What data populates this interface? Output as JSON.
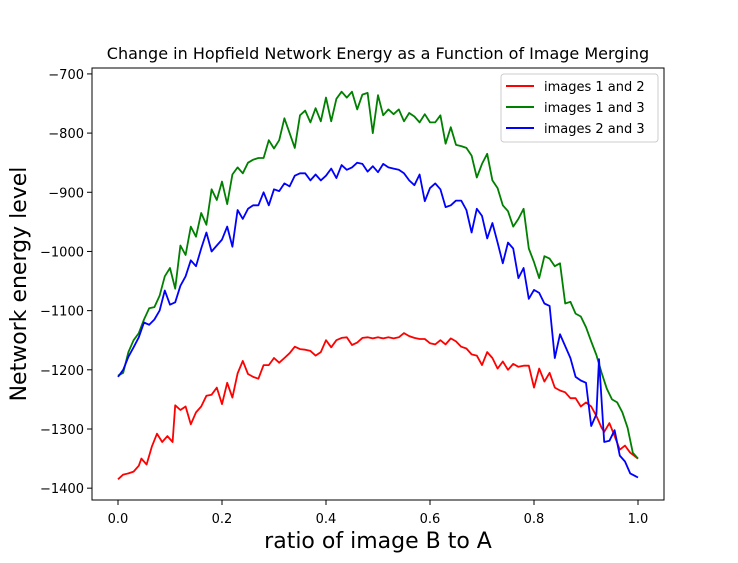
{
  "chart_data": {
    "type": "line",
    "title": "Change in Hopfield Network Energy as a Function of Image Merging",
    "xlabel": "ratio of image B to A",
    "ylabel": "Network energy level",
    "xlim": [
      -0.05,
      1.05
    ],
    "ylim": [
      -1420,
      -690
    ],
    "xticks": [
      0.0,
      0.2,
      0.4,
      0.6,
      0.8,
      1.0
    ],
    "xtick_labels": [
      "0.0",
      "0.2",
      "0.4",
      "0.6",
      "0.8",
      "1.0"
    ],
    "yticks": [
      -1400,
      -1300,
      -1200,
      -1100,
      -1000,
      -900,
      -800,
      -700
    ],
    "ytick_labels": [
      "−1400",
      "−1300",
      "−1200",
      "−1100",
      "−1000",
      "−900",
      "−800",
      "−700"
    ],
    "grid": false,
    "legend_position": "top-right",
    "series": [
      {
        "name": "images 1 and 2",
        "color": "#ff0000",
        "points": [
          [
            0.0,
            -1385
          ],
          [
            0.01,
            -1377
          ],
          [
            0.02,
            -1375
          ],
          [
            0.03,
            -1372
          ],
          [
            0.04,
            -1362
          ],
          [
            0.045,
            -1350
          ],
          [
            0.055,
            -1360
          ],
          [
            0.065,
            -1330
          ],
          [
            0.075,
            -1308
          ],
          [
            0.085,
            -1322
          ],
          [
            0.095,
            -1312
          ],
          [
            0.105,
            -1322
          ],
          [
            0.11,
            -1260
          ],
          [
            0.12,
            -1268
          ],
          [
            0.13,
            -1262
          ],
          [
            0.14,
            -1292
          ],
          [
            0.15,
            -1272
          ],
          [
            0.16,
            -1262
          ],
          [
            0.17,
            -1244
          ],
          [
            0.18,
            -1242
          ],
          [
            0.19,
            -1230
          ],
          [
            0.2,
            -1258
          ],
          [
            0.21,
            -1222
          ],
          [
            0.22,
            -1247
          ],
          [
            0.23,
            -1206
          ],
          [
            0.24,
            -1185
          ],
          [
            0.25,
            -1207
          ],
          [
            0.26,
            -1212
          ],
          [
            0.27,
            -1215
          ],
          [
            0.28,
            -1192
          ],
          [
            0.29,
            -1192
          ],
          [
            0.3,
            -1180
          ],
          [
            0.31,
            -1188
          ],
          [
            0.32,
            -1180
          ],
          [
            0.33,
            -1172
          ],
          [
            0.34,
            -1161
          ],
          [
            0.35,
            -1165
          ],
          [
            0.36,
            -1166
          ],
          [
            0.37,
            -1168
          ],
          [
            0.38,
            -1176
          ],
          [
            0.39,
            -1170
          ],
          [
            0.4,
            -1150
          ],
          [
            0.41,
            -1162
          ],
          [
            0.42,
            -1150
          ],
          [
            0.43,
            -1146
          ],
          [
            0.44,
            -1145
          ],
          [
            0.45,
            -1158
          ],
          [
            0.46,
            -1154
          ],
          [
            0.47,
            -1146
          ],
          [
            0.48,
            -1145
          ],
          [
            0.49,
            -1147
          ],
          [
            0.5,
            -1145
          ],
          [
            0.51,
            -1147
          ],
          [
            0.52,
            -1145
          ],
          [
            0.53,
            -1147
          ],
          [
            0.54,
            -1145
          ],
          [
            0.55,
            -1138
          ],
          [
            0.56,
            -1143
          ],
          [
            0.57,
            -1146
          ],
          [
            0.58,
            -1148
          ],
          [
            0.59,
            -1148
          ],
          [
            0.6,
            -1155
          ],
          [
            0.61,
            -1157
          ],
          [
            0.62,
            -1150
          ],
          [
            0.63,
            -1157
          ],
          [
            0.64,
            -1147
          ],
          [
            0.65,
            -1152
          ],
          [
            0.66,
            -1161
          ],
          [
            0.67,
            -1164
          ],
          [
            0.68,
            -1174
          ],
          [
            0.69,
            -1176
          ],
          [
            0.7,
            -1192
          ],
          [
            0.71,
            -1170
          ],
          [
            0.72,
            -1180
          ],
          [
            0.73,
            -1198
          ],
          [
            0.74,
            -1186
          ],
          [
            0.75,
            -1200
          ],
          [
            0.76,
            -1190
          ],
          [
            0.77,
            -1195
          ],
          [
            0.78,
            -1193
          ],
          [
            0.79,
            -1193
          ],
          [
            0.8,
            -1230
          ],
          [
            0.81,
            -1198
          ],
          [
            0.82,
            -1220
          ],
          [
            0.83,
            -1205
          ],
          [
            0.84,
            -1230
          ],
          [
            0.85,
            -1235
          ],
          [
            0.86,
            -1238
          ],
          [
            0.87,
            -1248
          ],
          [
            0.88,
            -1248
          ],
          [
            0.89,
            -1262
          ],
          [
            0.9,
            -1255
          ],
          [
            0.91,
            -1262
          ],
          [
            0.92,
            -1278
          ],
          [
            0.93,
            -1298
          ],
          [
            0.935,
            -1305
          ],
          [
            0.945,
            -1290
          ],
          [
            0.955,
            -1312
          ],
          [
            0.965,
            -1335
          ],
          [
            0.975,
            -1328
          ],
          [
            0.985,
            -1340
          ],
          [
            1.0,
            -1350
          ]
        ]
      },
      {
        "name": "images 1 and 3",
        "color": "#008000",
        "points": [
          [
            0.0,
            -1210
          ],
          [
            0.01,
            -1205
          ],
          [
            0.02,
            -1170
          ],
          [
            0.03,
            -1150
          ],
          [
            0.04,
            -1138
          ],
          [
            0.05,
            -1115
          ],
          [
            0.06,
            -1096
          ],
          [
            0.07,
            -1094
          ],
          [
            0.08,
            -1075
          ],
          [
            0.09,
            -1042
          ],
          [
            0.1,
            -1028
          ],
          [
            0.11,
            -1063
          ],
          [
            0.12,
            -990
          ],
          [
            0.13,
            -1006
          ],
          [
            0.14,
            -958
          ],
          [
            0.15,
            -975
          ],
          [
            0.16,
            -935
          ],
          [
            0.17,
            -955
          ],
          [
            0.18,
            -895
          ],
          [
            0.19,
            -913
          ],
          [
            0.2,
            -882
          ],
          [
            0.21,
            -920
          ],
          [
            0.22,
            -870
          ],
          [
            0.23,
            -858
          ],
          [
            0.24,
            -868
          ],
          [
            0.25,
            -850
          ],
          [
            0.26,
            -845
          ],
          [
            0.27,
            -842
          ],
          [
            0.28,
            -842
          ],
          [
            0.29,
            -812
          ],
          [
            0.3,
            -826
          ],
          [
            0.31,
            -812
          ],
          [
            0.32,
            -775
          ],
          [
            0.33,
            -800
          ],
          [
            0.34,
            -825
          ],
          [
            0.35,
            -770
          ],
          [
            0.36,
            -762
          ],
          [
            0.37,
            -782
          ],
          [
            0.38,
            -758
          ],
          [
            0.39,
            -780
          ],
          [
            0.4,
            -740
          ],
          [
            0.41,
            -780
          ],
          [
            0.42,
            -742
          ],
          [
            0.43,
            -730
          ],
          [
            0.44,
            -740
          ],
          [
            0.45,
            -730
          ],
          [
            0.46,
            -760
          ],
          [
            0.47,
            -735
          ],
          [
            0.48,
            -732
          ],
          [
            0.49,
            -800
          ],
          [
            0.5,
            -736
          ],
          [
            0.51,
            -770
          ],
          [
            0.52,
            -760
          ],
          [
            0.53,
            -768
          ],
          [
            0.54,
            -760
          ],
          [
            0.55,
            -780
          ],
          [
            0.56,
            -766
          ],
          [
            0.57,
            -772
          ],
          [
            0.58,
            -782
          ],
          [
            0.59,
            -768
          ],
          [
            0.6,
            -782
          ],
          [
            0.61,
            -782
          ],
          [
            0.62,
            -770
          ],
          [
            0.63,
            -818
          ],
          [
            0.64,
            -790
          ],
          [
            0.65,
            -820
          ],
          [
            0.66,
            -822
          ],
          [
            0.67,
            -825
          ],
          [
            0.68,
            -838
          ],
          [
            0.69,
            -875
          ],
          [
            0.7,
            -852
          ],
          [
            0.71,
            -835
          ],
          [
            0.72,
            -880
          ],
          [
            0.73,
            -893
          ],
          [
            0.74,
            -922
          ],
          [
            0.75,
            -932
          ],
          [
            0.76,
            -958
          ],
          [
            0.77,
            -945
          ],
          [
            0.78,
            -928
          ],
          [
            0.79,
            -995
          ],
          [
            0.8,
            -1018
          ],
          [
            0.81,
            -1045
          ],
          [
            0.82,
            -1008
          ],
          [
            0.83,
            -1012
          ],
          [
            0.84,
            -1025
          ],
          [
            0.85,
            -1020
          ],
          [
            0.86,
            -1088
          ],
          [
            0.87,
            -1085
          ],
          [
            0.88,
            -1105
          ],
          [
            0.89,
            -1110
          ],
          [
            0.9,
            -1128
          ],
          [
            0.91,
            -1152
          ],
          [
            0.92,
            -1175
          ],
          [
            0.93,
            -1205
          ],
          [
            0.94,
            -1232
          ],
          [
            0.95,
            -1250
          ],
          [
            0.96,
            -1255
          ],
          [
            0.97,
            -1272
          ],
          [
            0.98,
            -1298
          ],
          [
            0.99,
            -1340
          ],
          [
            1.0,
            -1350
          ]
        ]
      },
      {
        "name": "images 2 and 3",
        "color": "#0000ff",
        "points": [
          [
            0.0,
            -1212
          ],
          [
            0.01,
            -1200
          ],
          [
            0.02,
            -1178
          ],
          [
            0.03,
            -1162
          ],
          [
            0.04,
            -1145
          ],
          [
            0.05,
            -1120
          ],
          [
            0.06,
            -1124
          ],
          [
            0.07,
            -1115
          ],
          [
            0.08,
            -1100
          ],
          [
            0.09,
            -1066
          ],
          [
            0.1,
            -1090
          ],
          [
            0.11,
            -1086
          ],
          [
            0.12,
            -1058
          ],
          [
            0.13,
            -1042
          ],
          [
            0.14,
            -1015
          ],
          [
            0.15,
            -1025
          ],
          [
            0.16,
            -995
          ],
          [
            0.17,
            -968
          ],
          [
            0.18,
            -1000
          ],
          [
            0.19,
            -990
          ],
          [
            0.2,
            -980
          ],
          [
            0.21,
            -958
          ],
          [
            0.22,
            -992
          ],
          [
            0.23,
            -930
          ],
          [
            0.24,
            -945
          ],
          [
            0.25,
            -928
          ],
          [
            0.26,
            -922
          ],
          [
            0.27,
            -922
          ],
          [
            0.28,
            -900
          ],
          [
            0.29,
            -922
          ],
          [
            0.3,
            -895
          ],
          [
            0.31,
            -898
          ],
          [
            0.32,
            -885
          ],
          [
            0.33,
            -890
          ],
          [
            0.34,
            -872
          ],
          [
            0.35,
            -868
          ],
          [
            0.36,
            -868
          ],
          [
            0.37,
            -880
          ],
          [
            0.38,
            -870
          ],
          [
            0.39,
            -880
          ],
          [
            0.4,
            -872
          ],
          [
            0.41,
            -860
          ],
          [
            0.42,
            -876
          ],
          [
            0.43,
            -854
          ],
          [
            0.44,
            -862
          ],
          [
            0.45,
            -858
          ],
          [
            0.46,
            -850
          ],
          [
            0.47,
            -852
          ],
          [
            0.48,
            -865
          ],
          [
            0.49,
            -856
          ],
          [
            0.5,
            -866
          ],
          [
            0.51,
            -852
          ],
          [
            0.52,
            -858
          ],
          [
            0.53,
            -860
          ],
          [
            0.54,
            -862
          ],
          [
            0.55,
            -868
          ],
          [
            0.56,
            -880
          ],
          [
            0.57,
            -888
          ],
          [
            0.58,
            -870
          ],
          [
            0.59,
            -915
          ],
          [
            0.6,
            -893
          ],
          [
            0.61,
            -885
          ],
          [
            0.62,
            -895
          ],
          [
            0.63,
            -925
          ],
          [
            0.64,
            -922
          ],
          [
            0.65,
            -914
          ],
          [
            0.66,
            -914
          ],
          [
            0.67,
            -930
          ],
          [
            0.68,
            -968
          ],
          [
            0.69,
            -928
          ],
          [
            0.7,
            -940
          ],
          [
            0.71,
            -978
          ],
          [
            0.72,
            -952
          ],
          [
            0.73,
            -985
          ],
          [
            0.74,
            -1020
          ],
          [
            0.75,
            -985
          ],
          [
            0.76,
            -995
          ],
          [
            0.77,
            -1045
          ],
          [
            0.78,
            -1028
          ],
          [
            0.79,
            -1080
          ],
          [
            0.8,
            -1065
          ],
          [
            0.81,
            -1070
          ],
          [
            0.82,
            -1088
          ],
          [
            0.83,
            -1092
          ],
          [
            0.84,
            -1180
          ],
          [
            0.85,
            -1140
          ],
          [
            0.86,
            -1160
          ],
          [
            0.87,
            -1180
          ],
          [
            0.88,
            -1212
          ],
          [
            0.89,
            -1218
          ],
          [
            0.9,
            -1222
          ],
          [
            0.91,
            -1295
          ],
          [
            0.92,
            -1275
          ],
          [
            0.925,
            -1182
          ],
          [
            0.935,
            -1322
          ],
          [
            0.945,
            -1320
          ],
          [
            0.955,
            -1302
          ],
          [
            0.965,
            -1345
          ],
          [
            0.975,
            -1355
          ],
          [
            0.985,
            -1375
          ],
          [
            1.0,
            -1382
          ]
        ]
      }
    ]
  }
}
